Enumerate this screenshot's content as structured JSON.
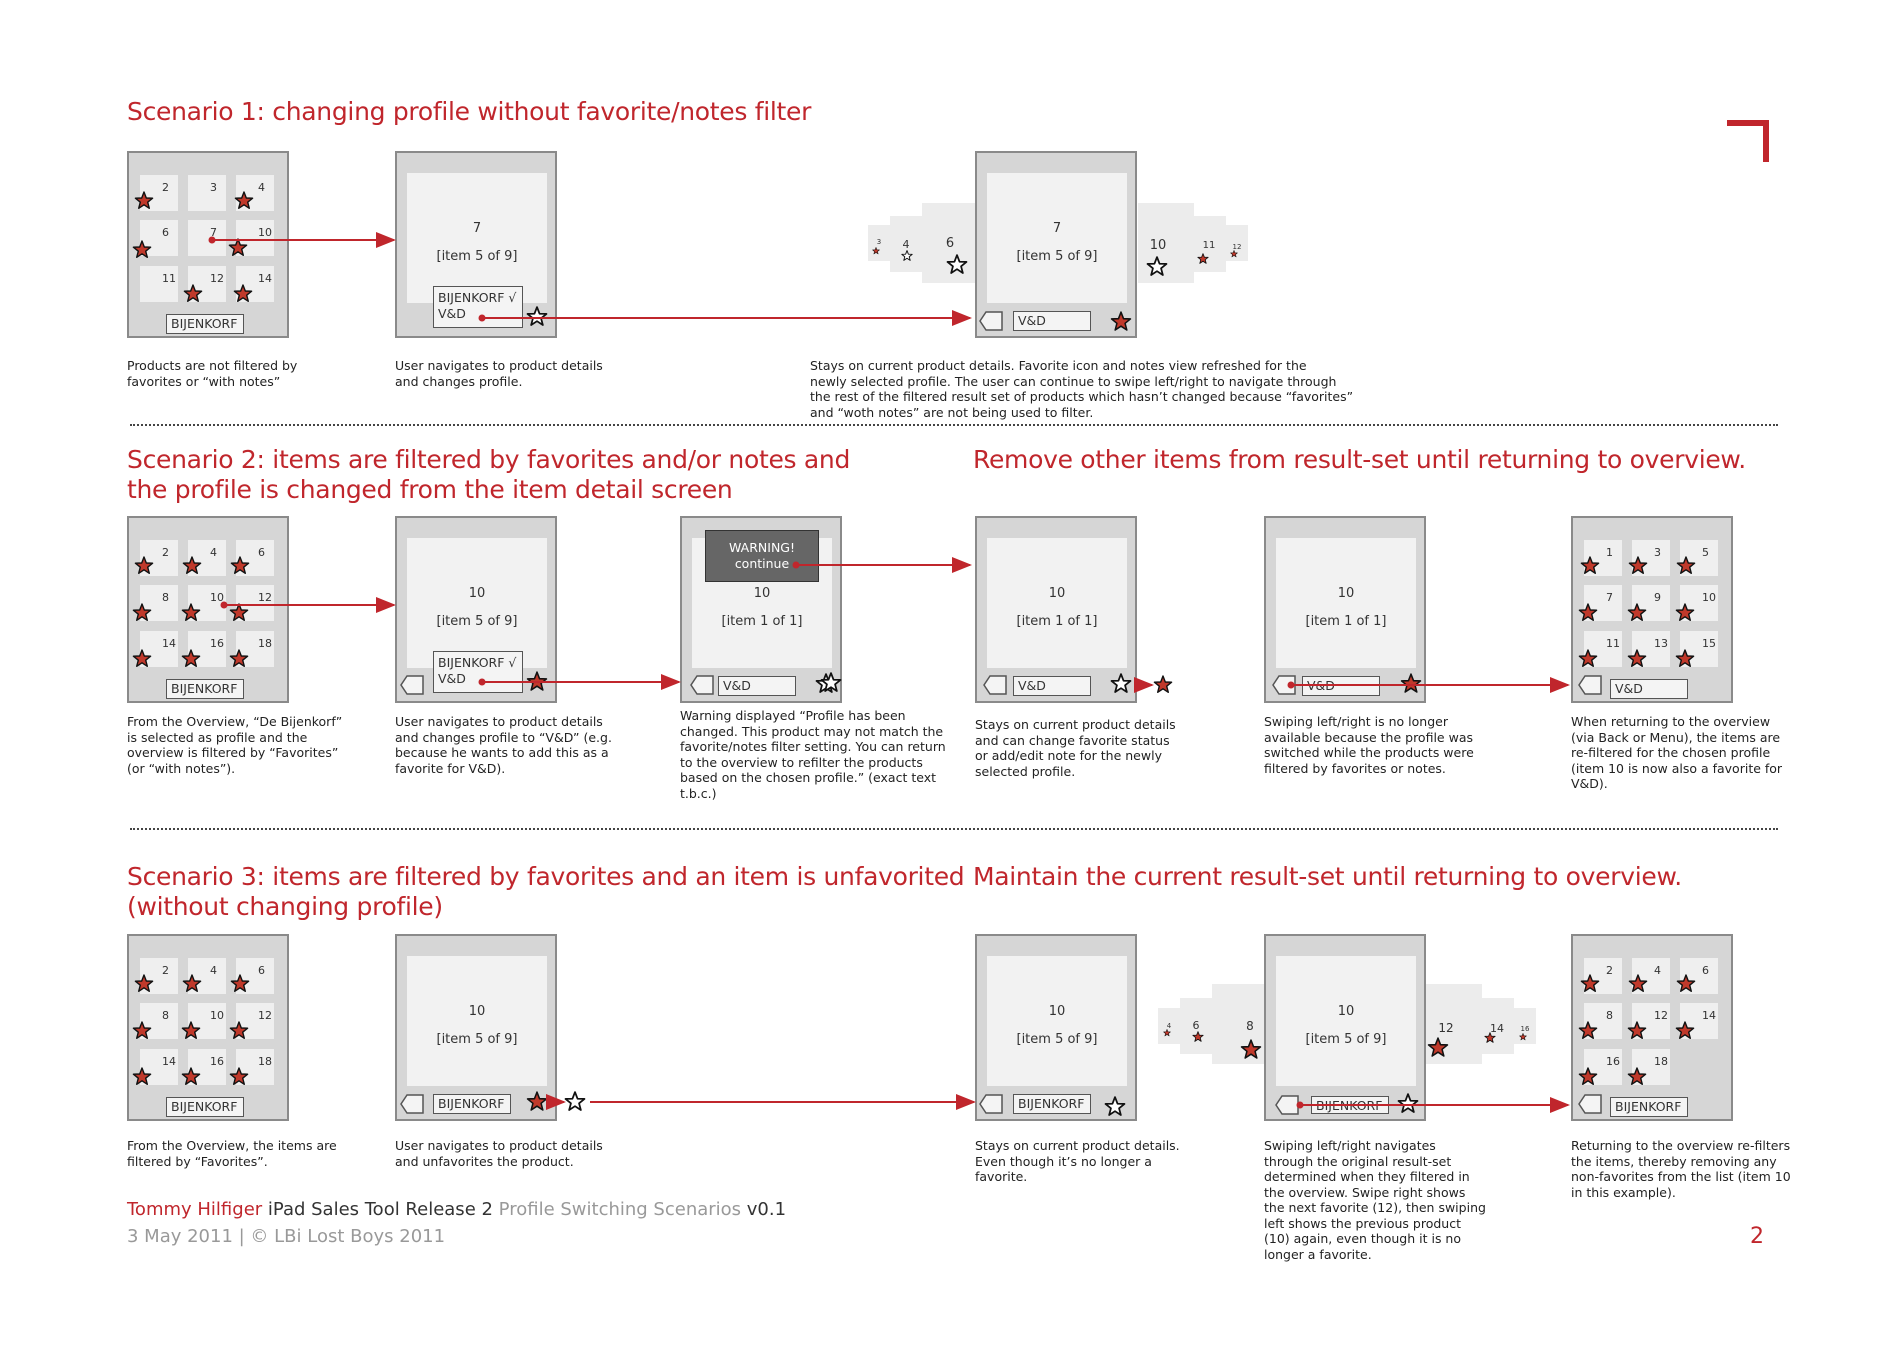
{
  "colors": {
    "accent": "#c0262c",
    "star_fill": "#c0392b",
    "device": "#d6d6d6",
    "screen": "#f2f2f2"
  },
  "s1": {
    "title": "Scenario 1: changing profile without favorite/notes filter",
    "c1": "Products are not filtered by\nfavorites or “with notes”",
    "c2": "User navigates to product details\nand changes profile.",
    "c3": "Stays on current product details. Favorite icon and notes view refreshed for the\nnewly selected profile. The user can continue to swipe left/right to navigate through\nthe rest of the filtered result set of products which hasn’t changed because “favorites”\nand “woth notes” are not being used to filter."
  },
  "s2": {
    "title1": "Scenario 2: items are filtered by favorites and/or notes and",
    "title2": "the profile is changed from the item detail screen",
    "title_right": "Remove other items from result-set until returning to overview.",
    "c1": "From the Overview, “De Bijenkorf”\nis selected as profile and the\noverview is filtered by “Favorites”\n(or “with notes”).",
    "c2": "User navigates to product details\nand changes profile to “V&D” (e.g.\nbecause he wants to add this as a\nfavorite for V&D).",
    "c3": "Warning displayed “Profile has been\nchanged. This product may not match the\nfavorite/notes filter setting. You can return\nto the overview to refilter the products\nbased on the chosen profile.” (exact text\nt.b.c.)",
    "c4": "Stays on current product details\nand can change favorite status\nor add/edit note for the newly\nselected profile.",
    "c5": "Swiping left/right is no longer\navailable because the profile was\nswitched while the products were\nfiltered by favorites or notes.",
    "c6": "When returning to the overview\n(via Back or Menu), the items are\nre-filtered for the chosen profile\n(item 10 is now also a favorite for\nV&D).",
    "warning_line1": "WARNING!",
    "warning_line2": "continue"
  },
  "s3": {
    "title1": "Scenario 3: items are filtered by favorites and an item is unfavorited",
    "title2": "(without changing profile)",
    "title_right": "Maintain the current result-set until returning to overview.",
    "c1": "From the Overview, the items are\nfiltered by “Favorites”.",
    "c2": "User navigates to product details\nand unfavorites the product.",
    "c3": "Stays on current product details.\nEven though it’s no longer a\nfavorite.",
    "c4": "Swiping left/right navigates\nthrough the original result-set\ndetermined when they filtered in\nthe overview. Swipe right shows\nthe next favorite (12), then swiping\nleft shows the previous product\n(10) again, even though it is no\nlonger a favorite.",
    "c5": "Returning to the overview re-filters\nthe items, thereby removing any\nnon-favorites from the list (item 10\nin this example)."
  },
  "labels": {
    "bijenkorf": "BIJENKORF",
    "vd": "V&D",
    "bijenkorf_check": "BIJENKORF √"
  },
  "footer": {
    "brand": "Tommy Hilfiger",
    "product": " iPad Sales Tool Release 2 ",
    "doc": "Profile Switching Scenarios",
    "version": " v0.1",
    "date": "3 May 2011  |  © LBi Lost Boys 2011",
    "page": "2"
  }
}
